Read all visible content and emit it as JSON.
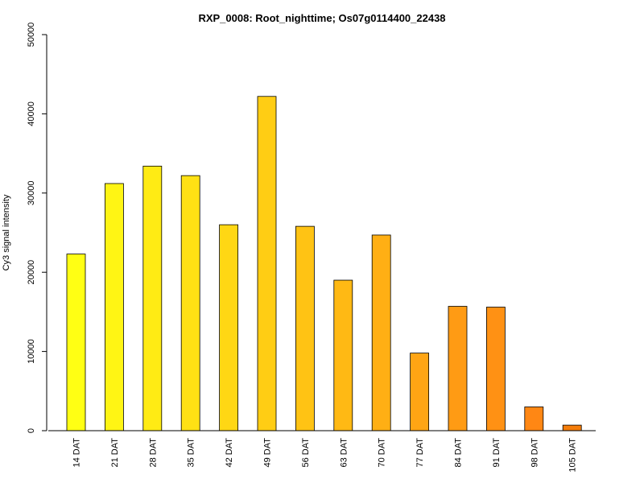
{
  "chart_data": {
    "type": "bar",
    "title": "RXP_0008: Root_nighttime; Os07g0114400_22438",
    "ylabel": "Cy3 signal intensity",
    "xlabel": "",
    "ylim": [
      0,
      50000
    ],
    "yticks": [
      0,
      10000,
      20000,
      30000,
      40000,
      50000
    ],
    "categories": [
      "14 DAT",
      "21 DAT",
      "28 DAT",
      "35 DAT",
      "42 DAT",
      "49 DAT",
      "56 DAT",
      "63 DAT",
      "70 DAT",
      "77 DAT",
      "84 DAT",
      "91 DAT",
      "98 DAT",
      "105 DAT"
    ],
    "values": [
      22300,
      31200,
      33400,
      32200,
      26000,
      42200,
      25800,
      19000,
      24700,
      9800,
      15700,
      15600,
      3000,
      700
    ],
    "colors": [
      "#FFFF14",
      "#FFF514",
      "#FFEB14",
      "#FFE114",
      "#FFD714",
      "#FFCD14",
      "#FFC314",
      "#FFB914",
      "#FFAF14",
      "#FFA514",
      "#FF9B14",
      "#FF9114",
      "#FF8714",
      "#F57D0A"
    ],
    "grid": false,
    "legend": "none"
  }
}
